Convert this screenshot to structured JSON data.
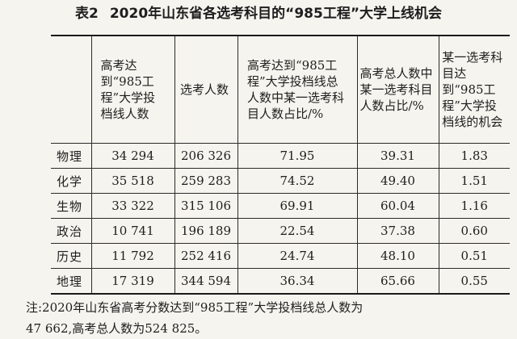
{
  "title": {
    "table_no": "表2",
    "text": "2020年山东省各选考科目的“985工程”大学上线机会"
  },
  "headers": [
    {
      "key": "subject",
      "text": ""
    },
    {
      "key": "admitted",
      "text": "高考达到“985工程”大学投档线人数"
    },
    {
      "key": "takers",
      "text": "选考人数"
    },
    {
      "key": "share_in_admitted",
      "text": "高考达到“985工程”大学投档线总人数中某一选考科目人数占比/%"
    },
    {
      "key": "share_in_total",
      "text": "高考总人数中某一选考科目人数占比/%"
    },
    {
      "key": "chance",
      "text": "某一选考科目达到“985工程”大学投档线的机会"
    }
  ],
  "rows": [
    {
      "subject": "物理",
      "admitted": "34 294",
      "takers": "206 326",
      "share_in_admitted": "71.95",
      "share_in_total": "39.31",
      "chance": "1.83"
    },
    {
      "subject": "化学",
      "admitted": "35 518",
      "takers": "259 283",
      "share_in_admitted": "74.52",
      "share_in_total": "49.40",
      "chance": "1.51"
    },
    {
      "subject": "生物",
      "admitted": "33 322",
      "takers": "315 106",
      "share_in_admitted": "69.91",
      "share_in_total": "60.04",
      "chance": "1.16"
    },
    {
      "subject": "政治",
      "admitted": "10 741",
      "takers": "196 189",
      "share_in_admitted": "22.54",
      "share_in_total": "37.38",
      "chance": "0.60"
    },
    {
      "subject": "历史",
      "admitted": "11 792",
      "takers": "252 416",
      "share_in_admitted": "24.74",
      "share_in_total": "48.10",
      "chance": "0.51"
    },
    {
      "subject": "地理",
      "admitted": "17 319",
      "takers": "344 594",
      "share_in_admitted": "36.34",
      "share_in_total": "65.66",
      "chance": "0.55"
    }
  ],
  "note": {
    "line1": "注:2020年山东省高考分数达到“985工程”大学投档线总人数为",
    "line2": "47 662,高考总人数为524 825。"
  }
}
